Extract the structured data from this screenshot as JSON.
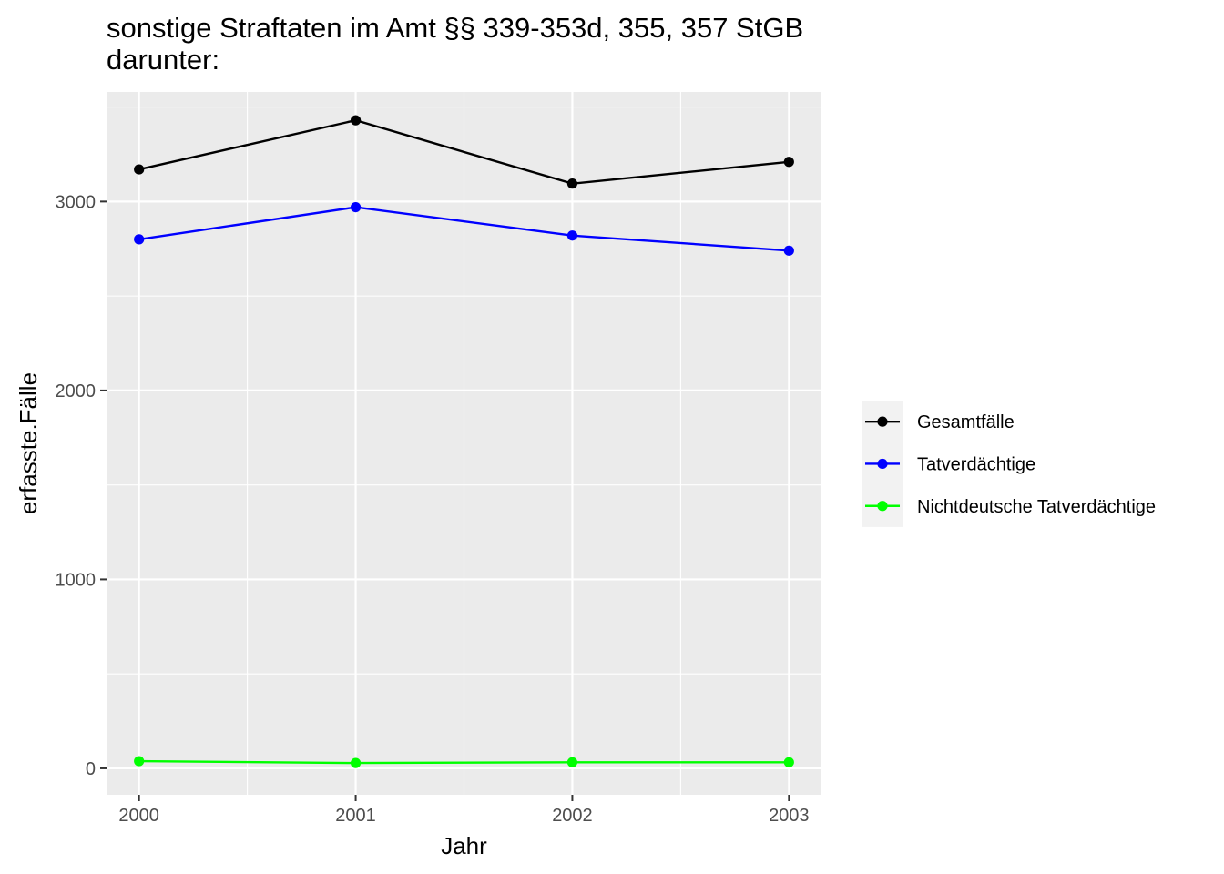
{
  "chart_data": {
    "type": "line",
    "title_lines": [
      "sonstige Straftaten im Amt §§ 339-353d, 355, 357 StGB",
      "darunter:"
    ],
    "xlabel": "Jahr",
    "ylabel": "erfasste.Fälle",
    "x": [
      2000,
      2001,
      2002,
      2003
    ],
    "x_tick_labels": [
      "2000",
      "2001",
      "2002",
      "2003"
    ],
    "xlim": [
      1999.85,
      2003.15
    ],
    "y_ticks": [
      0,
      1000,
      2000,
      3000
    ],
    "y_tick_labels": [
      "0",
      "1000",
      "2000",
      "3000"
    ],
    "ylim": [
      -140,
      3580
    ],
    "grid": true,
    "legend_position": "right",
    "series": [
      {
        "name": "Gesamtfälle",
        "color": "#000000",
        "values": [
          3170,
          3430,
          3095,
          3210
        ]
      },
      {
        "name": "Tatverdächtige",
        "color": "#0000ff",
        "values": [
          2800,
          2970,
          2820,
          2740
        ]
      },
      {
        "name": "Nichtdeutsche Tatverdächtige",
        "color": "#00ff00",
        "values": [
          38,
          28,
          32,
          32
        ]
      }
    ]
  }
}
